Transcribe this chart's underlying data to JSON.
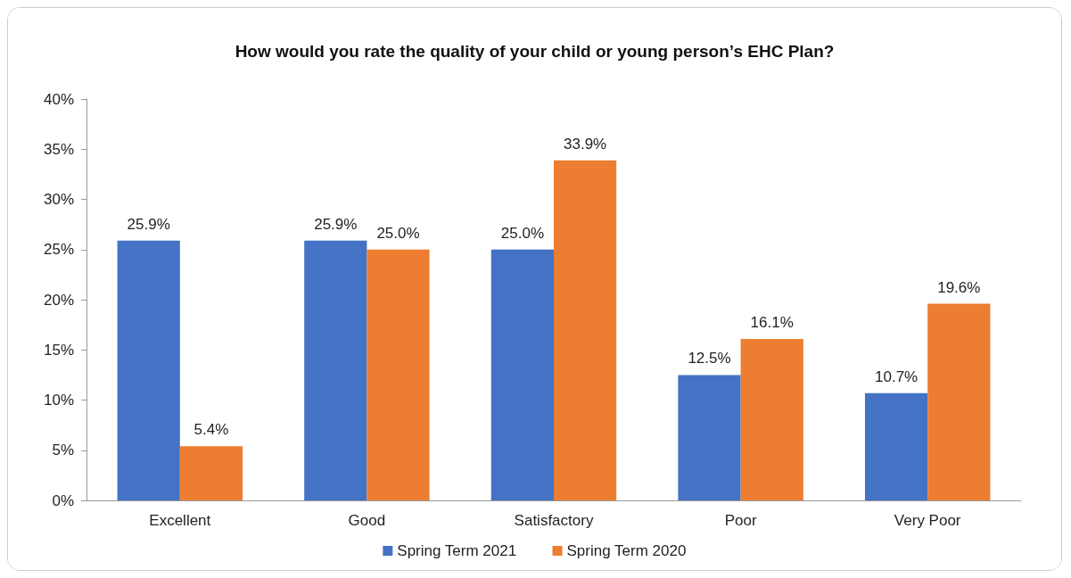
{
  "chart_data": {
    "type": "bar",
    "title": "How would you rate the quality of your child or young person’s EHC Plan?",
    "categories": [
      "Excellent",
      "Good",
      "Satisfactory",
      "Poor",
      "Very Poor"
    ],
    "series": [
      {
        "name": "Spring Term 2021",
        "color": "#4472c4",
        "values": [
          25.9,
          25.9,
          25.0,
          12.5,
          10.7
        ],
        "value_labels": [
          "25.9%",
          "25.9%",
          "25.0%",
          "12.5%",
          "10.7%"
        ]
      },
      {
        "name": "Spring Term 2020",
        "color": "#ed7d31",
        "values": [
          5.4,
          25.0,
          33.9,
          16.1,
          19.6
        ],
        "value_labels": [
          "5.4%",
          "25.0%",
          "33.9%",
          "16.1%",
          "19.6%"
        ]
      }
    ],
    "ylim": [
      0,
      40
    ],
    "yticks": [
      {
        "value": 0,
        "label": "0%"
      },
      {
        "value": 5,
        "label": "5%"
      },
      {
        "value": 10,
        "label": "10%"
      },
      {
        "value": 15,
        "label": "15%"
      },
      {
        "value": 20,
        "label": "20%"
      },
      {
        "value": 25,
        "label": "25%"
      },
      {
        "value": 30,
        "label": "30%"
      },
      {
        "value": 35,
        "label": "35%"
      },
      {
        "value": 40,
        "label": "40%"
      }
    ],
    "grid": false,
    "legend": "bottom"
  }
}
